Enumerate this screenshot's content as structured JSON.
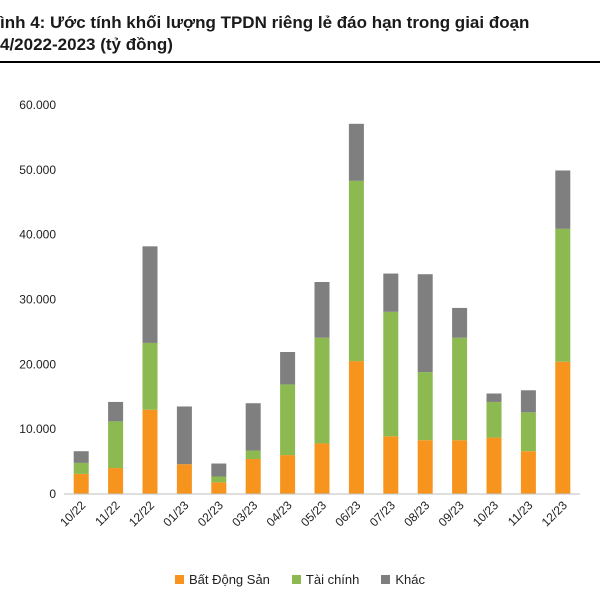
{
  "chart_data": {
    "type": "bar",
    "stacked": true,
    "title_lines": [
      "ình 4: Ước tính khối lượng TPDN riêng lẻ đáo hạn trong giai đoạn",
      "4/2022-2023 (tỷ đồng)"
    ],
    "categories": [
      "10/22",
      "11/22",
      "12/22",
      "01/23",
      "02/23",
      "03/23",
      "04/23",
      "05/23",
      "06/23",
      "07/23",
      "08/23",
      "09/23",
      "10/23",
      "11/23",
      "12/23"
    ],
    "series": [
      {
        "name": "Bất Động Sản",
        "color": "#f7941d",
        "values": [
          3100,
          4000,
          13000,
          4600,
          1800,
          5400,
          6000,
          7800,
          20500,
          8900,
          8300,
          8300,
          8700,
          6600,
          20400
        ]
      },
      {
        "name": "Tài chính",
        "color": "#8cba51",
        "values": [
          1700,
          7200,
          10300,
          0,
          900,
          1300,
          10900,
          16300,
          27800,
          19200,
          10500,
          15800,
          5500,
          6000,
          20500
        ]
      },
      {
        "name": "Khác",
        "color": "#7f7f7f",
        "values": [
          1800,
          3000,
          14900,
          8900,
          2000,
          7300,
          5000,
          8600,
          8800,
          5900,
          15100,
          4600,
          1300,
          3400,
          9000
        ]
      }
    ],
    "ylim": [
      0,
      60000
    ],
    "yticks": [
      "0",
      "10.000",
      "20.000",
      "30.000",
      "40.000",
      "50.000",
      "60.000"
    ],
    "ytick_values": [
      0,
      10000,
      20000,
      30000,
      40000,
      50000,
      60000
    ],
    "grid": false,
    "legend_position": "bottom"
  }
}
